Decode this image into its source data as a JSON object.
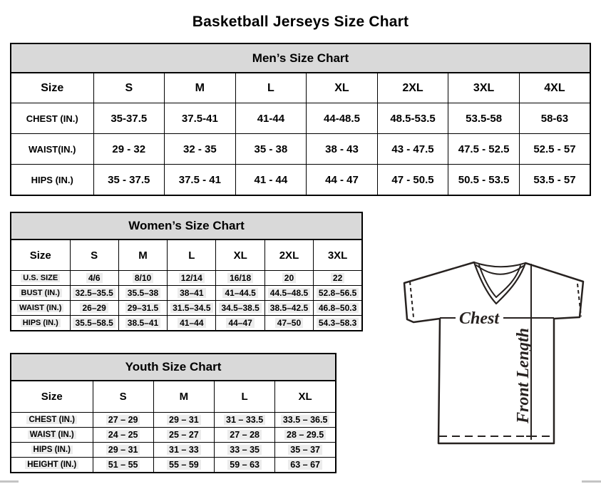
{
  "page_title": "Basketball Jerseys Size Chart",
  "tables": {
    "men": {
      "title": "Men’s Size Chart",
      "header": [
        "Size",
        "S",
        "M",
        "L",
        "XL",
        "2XL",
        "3XL",
        "4XL"
      ],
      "rows": [
        [
          "CHEST (IN.)",
          "35-37.5",
          "37.5-41",
          "41-44",
          "44-48.5",
          "48.5-53.5",
          "53.5-58",
          "58-63"
        ],
        [
          "WAIST(IN.)",
          "29 - 32",
          "32 - 35",
          "35 - 38",
          "38 - 43",
          "43 - 47.5",
          "47.5 - 52.5",
          "52.5 - 57"
        ],
        [
          "HIPS (IN.)",
          "35 - 37.5",
          "37.5 - 41",
          "41 - 44",
          "44 - 47",
          "47 - 50.5",
          "50.5 - 53.5",
          "53.5 - 57"
        ]
      ]
    },
    "women": {
      "title": "Women’s Size Chart",
      "header": [
        "Size",
        "S",
        "M",
        "L",
        "XL",
        "2XL",
        "3XL"
      ],
      "rows": [
        [
          "U.S. SIZE",
          "4/6",
          "8/10",
          "12/14",
          "16/18",
          "20",
          "22"
        ],
        [
          "BUST (IN.)",
          "32.5–35.5",
          "35.5–38",
          "38–41",
          "41–44.5",
          "44.5–48.5",
          "52.8–56.5"
        ],
        [
          "WAIST (IN.)",
          "26–29",
          "29–31.5",
          "31.5–34.5",
          "34.5–38.5",
          "38.5–42.5",
          "46.8–50.3"
        ],
        [
          "HIPS (IN.)",
          "35.5–58.5",
          "38.5–41",
          "41–44",
          "44–47",
          "47–50",
          "54.3–58.3"
        ]
      ]
    },
    "youth": {
      "title": "Youth Size Chart",
      "header": [
        "Size",
        "S",
        "M",
        "L",
        "XL"
      ],
      "rows": [
        [
          "CHEST (IN.)",
          "27 – 29",
          "29 – 31",
          "31 – 33.5",
          "33.5 – 36.5"
        ],
        [
          "WAIST (IN.)",
          "24 – 25",
          "25 – 27",
          "27 – 28",
          "28 – 29.5"
        ],
        [
          "HIPS (IN.)",
          "29 – 31",
          "31 – 33",
          "33 – 35",
          "35 – 37"
        ],
        [
          "HEIGHT (IN.)",
          "51 – 55",
          "55 – 59",
          "59 – 63",
          "63 – 67"
        ]
      ]
    }
  },
  "diagram": {
    "chest_label": "Chest",
    "front_length_label": "Front Length"
  },
  "colors": {
    "header_band": "#d9d9d9",
    "table_border": "#000000",
    "line_art": "#272220",
    "highlight": "#ececec"
  }
}
